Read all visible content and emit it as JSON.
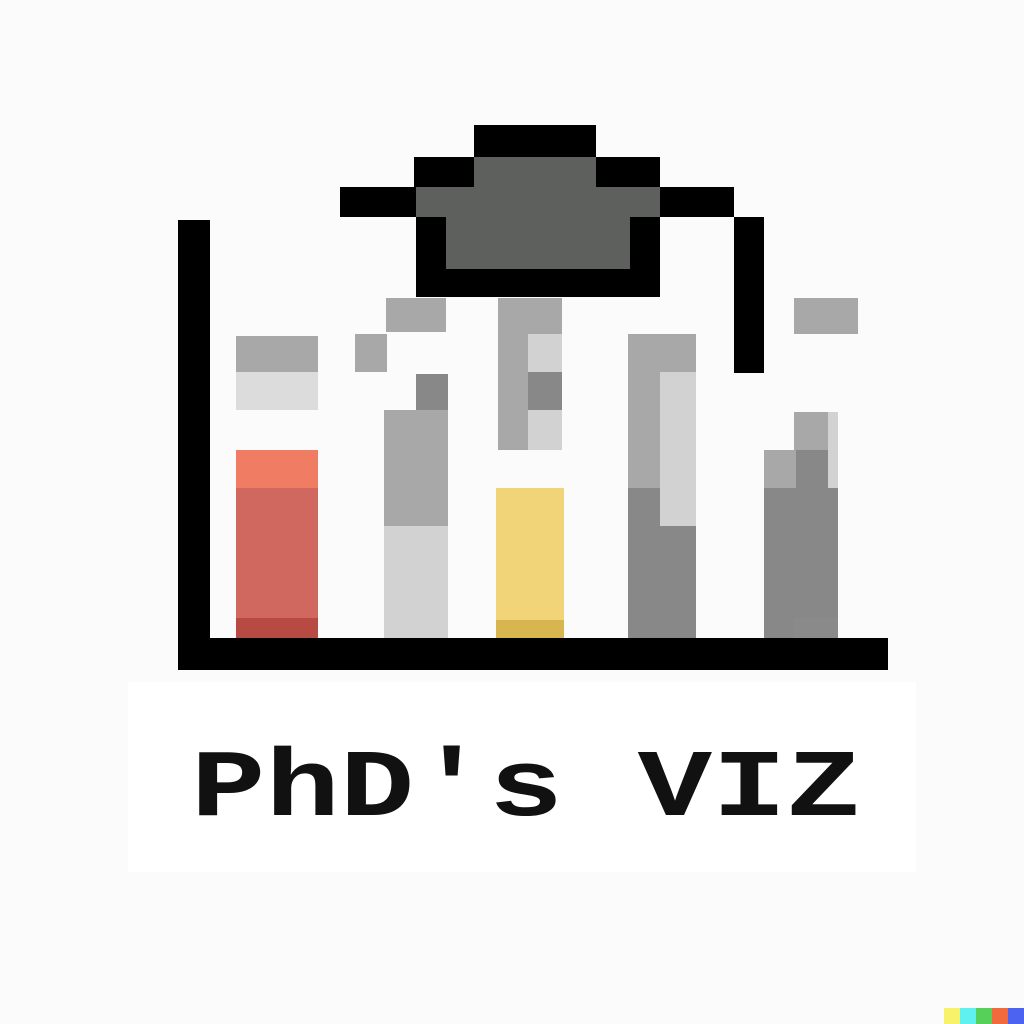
{
  "logo": {
    "title": "PhD's VIZ"
  },
  "colors": {
    "background": "#fbfbfb",
    "axis": "#000000",
    "cap_board": "#000000",
    "cap_crown": "#5e605e",
    "text": "#111111",
    "text_panel": "#ffffff",
    "bar_red": "#d0685f",
    "bar_red_top": "#ef7c63",
    "bar_red_base": "#b84a44",
    "bar_yellow": "#f2d478",
    "bar_yellow_base": "#d9b550",
    "bar_gray_dark": "#888888",
    "bar_gray_mid": "#a8a8a8",
    "bar_gray_light": "#d2d2d2",
    "bar_gray_pale": "#dcdcdc",
    "corner_swatches": [
      "#f8f26a",
      "#5ff0f0",
      "#57d05a",
      "#f06a3d",
      "#4b63f0"
    ]
  },
  "icons": {
    "graduation_cap": "graduation-cap-icon",
    "bar_chart": "bar-chart-icon"
  }
}
